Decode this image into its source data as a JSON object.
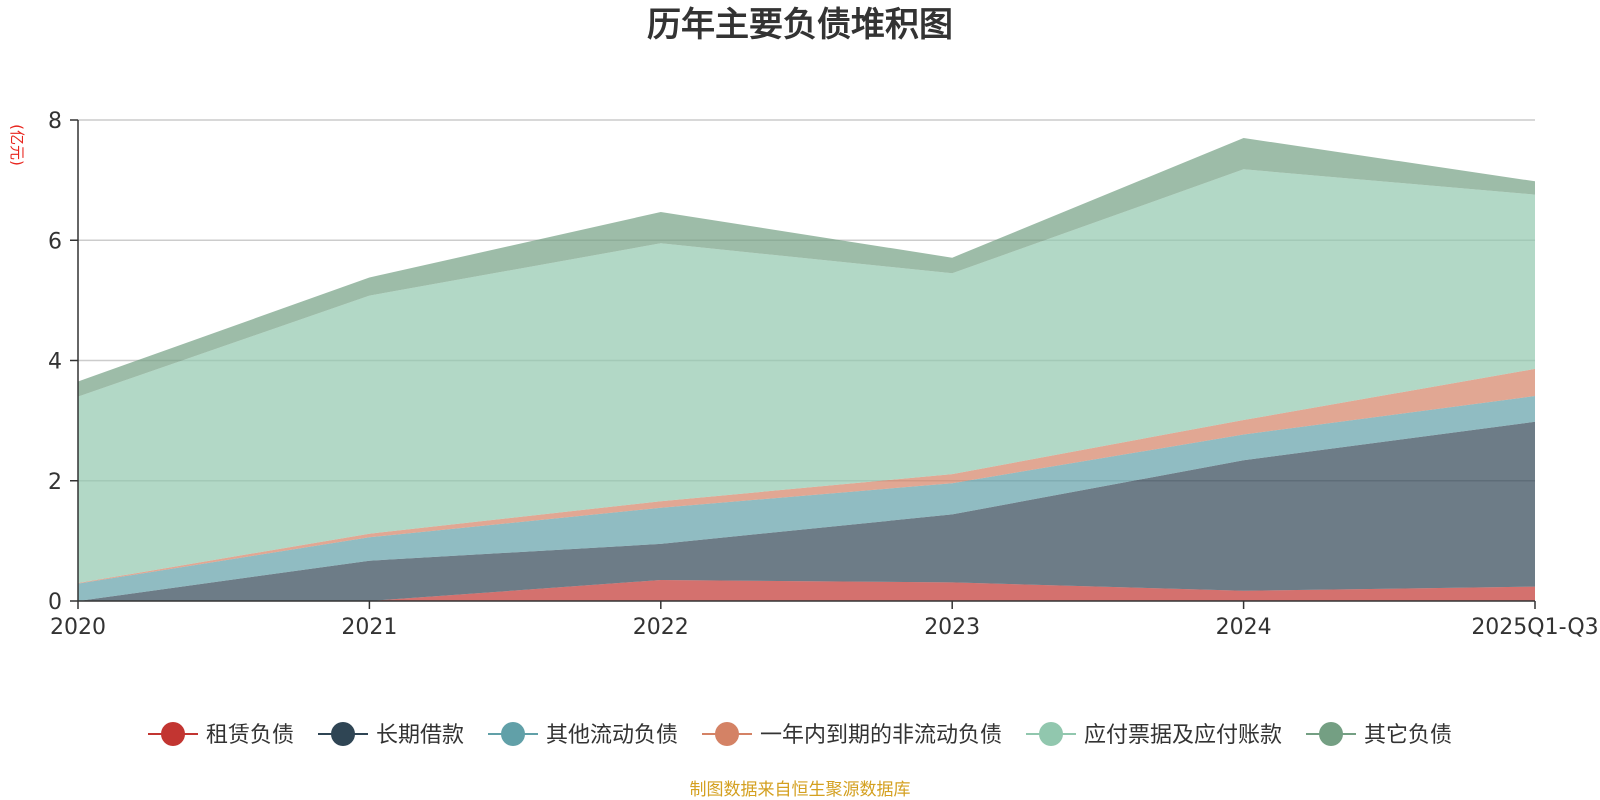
{
  "chart_data": {
    "type": "area",
    "stacked": true,
    "title": "历年主要负债堆积图",
    "ylabel": "(亿元)",
    "xlabel": "",
    "categories": [
      "2020",
      "2021",
      "2022",
      "2023",
      "2024",
      "2025Q1-Q3"
    ],
    "ylim": [
      0,
      8
    ],
    "yticks": [
      0,
      2,
      4,
      6,
      8
    ],
    "grid": true,
    "legend_position": "bottom",
    "series": [
      {
        "name": "租赁负债",
        "color": "#c23531",
        "values": [
          0.0,
          0.0,
          0.35,
          0.31,
          0.17,
          0.24
        ]
      },
      {
        "name": "长期借款",
        "color": "#2f4554",
        "values": [
          0.0,
          0.67,
          0.6,
          1.13,
          2.17,
          2.74
        ]
      },
      {
        "name": "其他流动负债",
        "color": "#61a0a8",
        "values": [
          0.29,
          0.39,
          0.6,
          0.52,
          0.43,
          0.43
        ]
      },
      {
        "name": "一年内到期的非流动负债",
        "color": "#d48265",
        "values": [
          0.01,
          0.06,
          0.11,
          0.15,
          0.24,
          0.45
        ]
      },
      {
        "name": "应付票据及应付账款",
        "color": "#91c7ae",
        "values": [
          3.1,
          3.96,
          4.29,
          3.34,
          4.17,
          2.9
        ]
      },
      {
        "name": "其它负债",
        "color": "#749f83",
        "values": [
          0.25,
          0.3,
          0.52,
          0.26,
          0.52,
          0.22
        ]
      }
    ],
    "source": "制图数据来自恒生聚源数据库"
  }
}
